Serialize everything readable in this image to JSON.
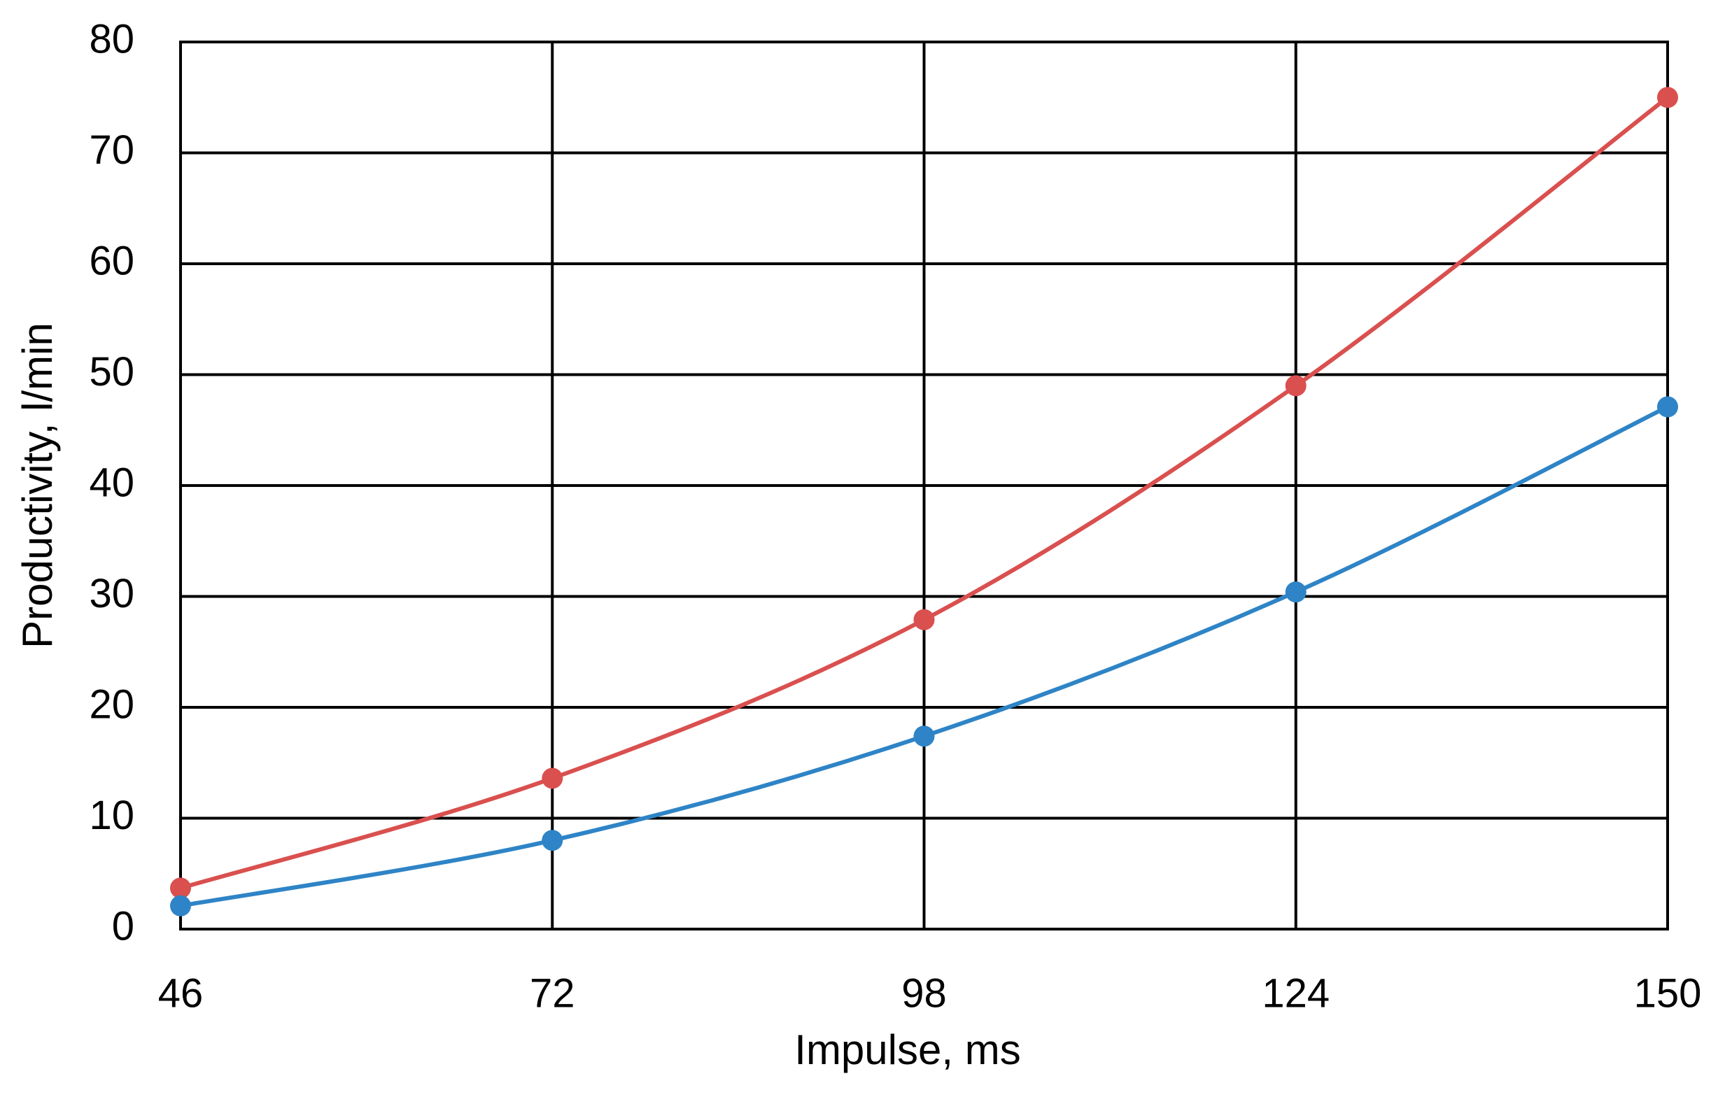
{
  "chart_data": {
    "type": "line",
    "x_label": "Impulse, ms",
    "y_label": "Productivity, l/min",
    "x": [
      46,
      72,
      98,
      124,
      150
    ],
    "series": [
      {
        "color": "#d9504f",
        "values": [
          3.7,
          13.6,
          27.9,
          49,
          75
        ]
      },
      {
        "color": "#2e84c6",
        "values": [
          2.1,
          8,
          17.4,
          30.4,
          47.1
        ]
      }
    ],
    "xlim": [
      46,
      150
    ],
    "xticks": [
      46,
      72,
      98,
      124,
      150
    ],
    "ylim": [
      0,
      80
    ],
    "yticks": [
      0,
      10,
      20,
      30,
      40,
      50,
      60,
      70,
      80
    ],
    "grid": true
  }
}
